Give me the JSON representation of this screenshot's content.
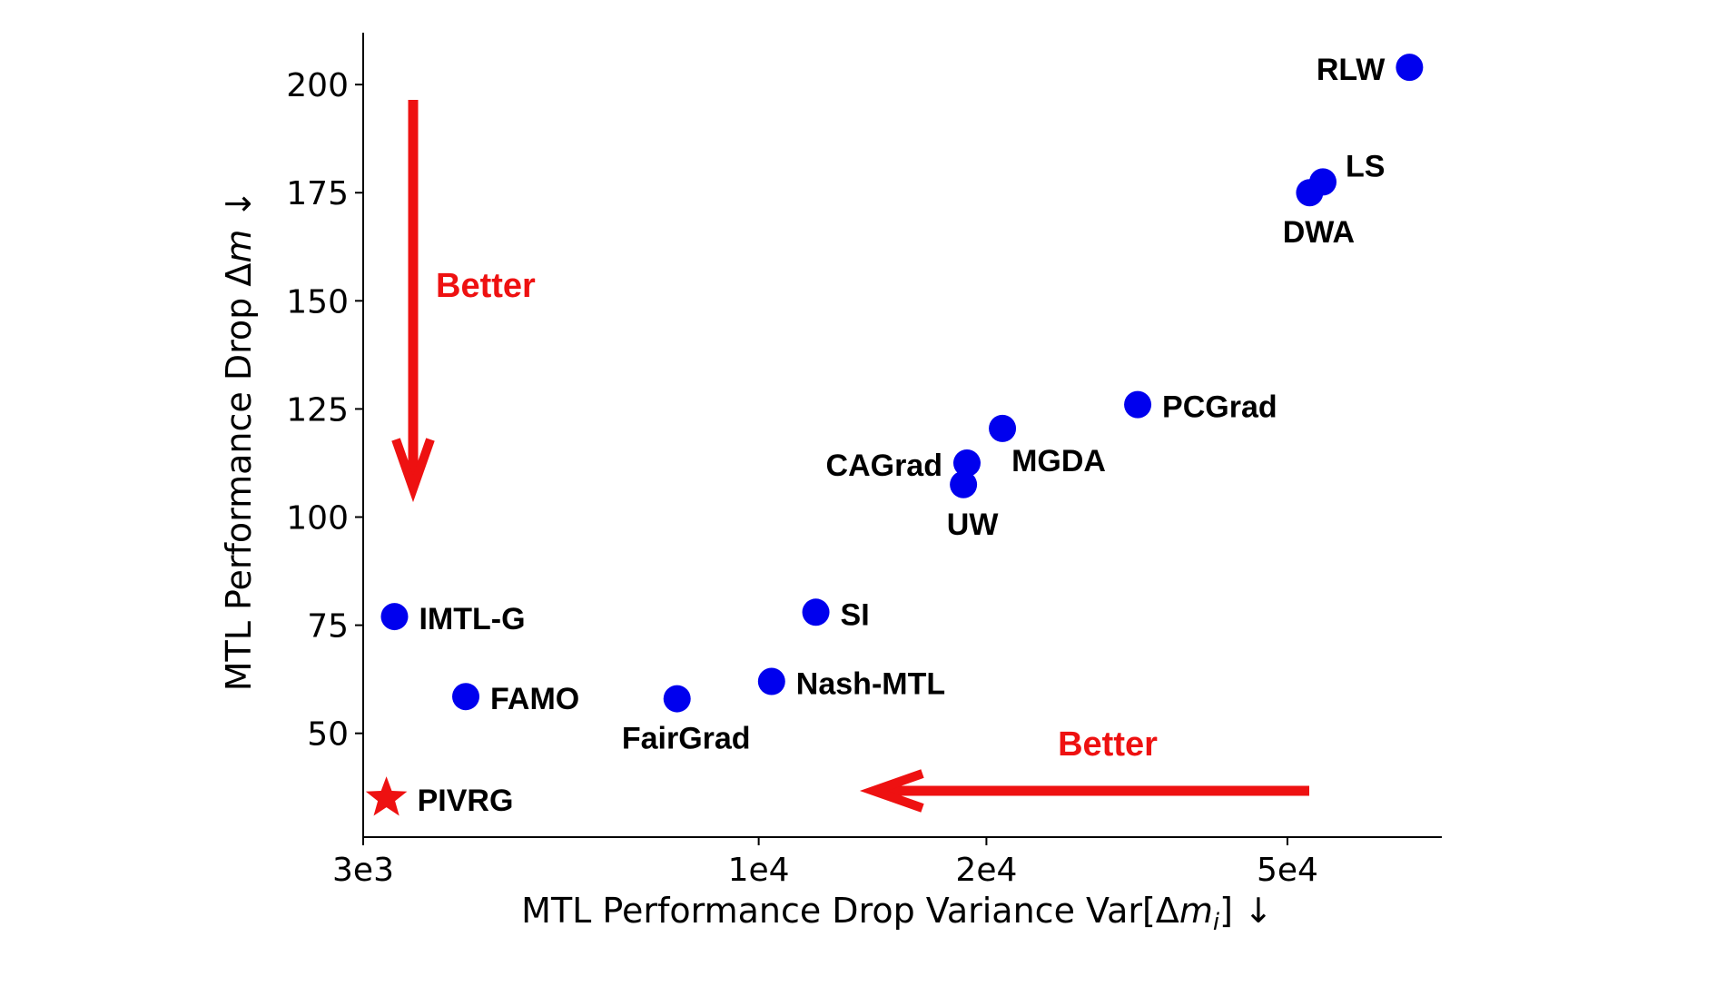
{
  "chart_data": {
    "type": "scatter",
    "xscale": "log",
    "xlim": [
      3000,
      80000
    ],
    "ylim": [
      26,
      212
    ],
    "grid": false,
    "xlabel_pre": "MTL Performance Drop Variance Var[Δ",
    "xlabel_var": "m",
    "xlabel_sub": "i",
    "xlabel_post": "] ↓",
    "ylabel_pre": "MTL Performance Drop Δ",
    "ylabel_var": "m",
    "ylabel_post": " ↓",
    "xticks": [
      {
        "value": 3000,
        "label": "3e3"
      },
      {
        "value": 10000,
        "label": "1e4"
      },
      {
        "value": 20000,
        "label": "2e4"
      },
      {
        "value": 50000,
        "label": "5e4"
      }
    ],
    "yticks": [
      {
        "value": 50,
        "label": "50"
      },
      {
        "value": 75,
        "label": "75"
      },
      {
        "value": 100,
        "label": "100"
      },
      {
        "value": 125,
        "label": "125"
      },
      {
        "value": 150,
        "label": "150"
      },
      {
        "value": 175,
        "label": "175"
      },
      {
        "value": 200,
        "label": "200"
      }
    ],
    "points": [
      {
        "label": "RLW",
        "x": 72500,
        "y": 204,
        "label_pos": "left"
      },
      {
        "label": "LS",
        "x": 55700,
        "y": 177.5,
        "label_pos": "above-right"
      },
      {
        "label": "DWA",
        "x": 53500,
        "y": 175,
        "label_pos": "below"
      },
      {
        "label": "PCGrad",
        "x": 31700,
        "y": 126,
        "label_pos": "right"
      },
      {
        "label": "MGDA",
        "x": 21000,
        "y": 120.5,
        "label_pos": "below-right"
      },
      {
        "label": "CAGrad",
        "x": 18850,
        "y": 112.5,
        "label_pos": "left"
      },
      {
        "label": "UW",
        "x": 18650,
        "y": 107.5,
        "label_pos": "below"
      },
      {
        "label": "SI",
        "x": 11900,
        "y": 78,
        "label_pos": "right"
      },
      {
        "label": "Nash-MTL",
        "x": 10400,
        "y": 62,
        "label_pos": "right"
      },
      {
        "label": "FairGrad",
        "x": 7800,
        "y": 58,
        "label_pos": "below"
      },
      {
        "label": "FAMO",
        "x": 4100,
        "y": 58.5,
        "label_pos": "right"
      },
      {
        "label": "IMTL-G",
        "x": 3300,
        "y": 77,
        "label_pos": "right"
      }
    ],
    "highlight": {
      "label": "PIVRG",
      "x": 3220,
      "y": 35,
      "marker": "star",
      "label_pos": "right"
    },
    "annotations": [
      {
        "text": "Better",
        "direction": "down"
      },
      {
        "text": "Better",
        "direction": "left"
      }
    ],
    "colors": {
      "points": "#0000ee",
      "highlight": "#ee1111",
      "arrows": "#ee1111",
      "axes": "#000000"
    }
  }
}
